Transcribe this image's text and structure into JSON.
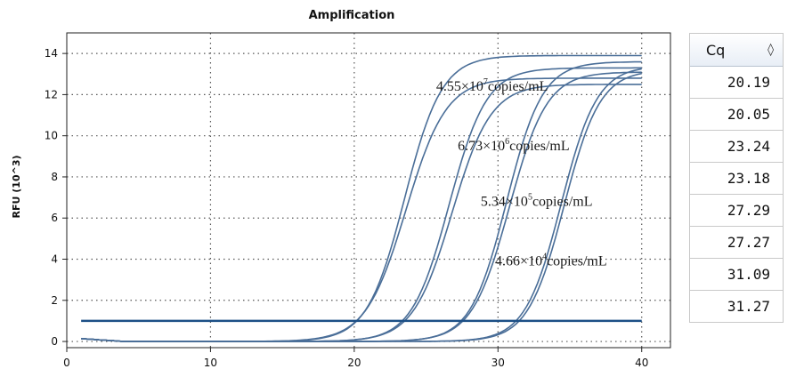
{
  "title": "Amplification",
  "chart_data": {
    "type": "line",
    "title": "Amplification",
    "xlabel": "",
    "ylabel": "RFU (10^3)",
    "xlim": [
      0,
      42
    ],
    "ylim": [
      -0.3,
      15
    ],
    "xticks": [
      0,
      10,
      20,
      30,
      40
    ],
    "yticks": [
      0,
      2,
      4,
      6,
      8,
      10,
      12,
      14
    ],
    "grid": true,
    "threshold": 1.0,
    "series": [
      {
        "plateau": 13.9,
        "midpoint": 23.5,
        "slope": 1.3
      },
      {
        "plateau": 12.8,
        "midpoint": 23.6,
        "slope": 1.4
      },
      {
        "plateau": 13.3,
        "midpoint": 26.6,
        "slope": 1.3
      },
      {
        "plateau": 12.5,
        "midpoint": 26.8,
        "slope": 1.35
      },
      {
        "plateau": 13.6,
        "midpoint": 30.6,
        "slope": 1.25
      },
      {
        "plateau": 13.1,
        "midpoint": 30.8,
        "slope": 1.3
      },
      {
        "plateau": 13.4,
        "midpoint": 34.4,
        "slope": 1.25
      },
      {
        "plateau": 13.2,
        "midpoint": 34.6,
        "slope": 1.25
      }
    ],
    "annotations": [
      {
        "base": "4.55×10",
        "exp": "7",
        "unit": "copies/mL",
        "x": 25.7,
        "y": 12.2
      },
      {
        "base": "6.73×10",
        "exp": "6",
        "unit": "copies/mL",
        "x": 27.2,
        "y": 9.3
      },
      {
        "base": "5.34×10",
        "exp": "5",
        "unit": "copies/mL",
        "x": 28.8,
        "y": 6.6
      },
      {
        "base": "4.66×10",
        "exp": "4",
        "unit": "copies/mL",
        "x": 29.8,
        "y": 3.7
      }
    ]
  },
  "table": {
    "header": "Cq",
    "sort_icon": "◊",
    "values": [
      "20.19",
      "20.05",
      "23.24",
      "23.18",
      "27.29",
      "27.27",
      "31.09",
      "31.27"
    ]
  }
}
